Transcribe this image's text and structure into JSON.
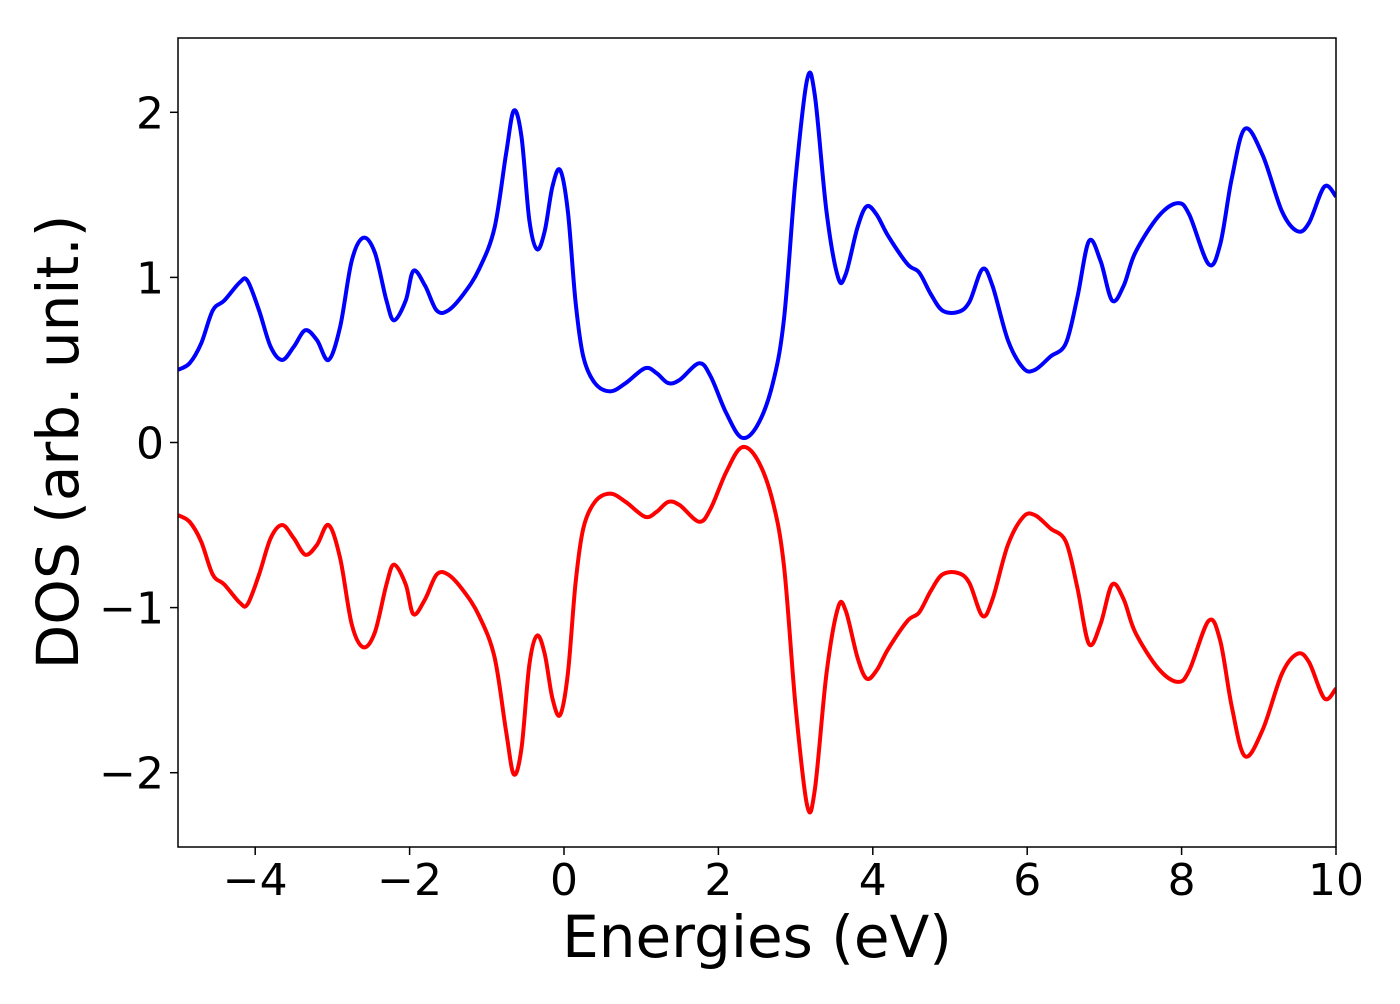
{
  "chart_data": {
    "type": "line",
    "title": "",
    "xlabel": "Energies (eV)",
    "ylabel": "DOS (arb. unit.)",
    "xlim": [
      -5,
      10
    ],
    "ylim": [
      -2.45,
      2.45
    ],
    "xticks": [
      {
        "value": -4,
        "label": "−4"
      },
      {
        "value": -2,
        "label": "−2"
      },
      {
        "value": 0,
        "label": "0"
      },
      {
        "value": 2,
        "label": "2"
      },
      {
        "value": 4,
        "label": "4"
      },
      {
        "value": 6,
        "label": "6"
      },
      {
        "value": 8,
        "label": "8"
      },
      {
        "value": 10,
        "label": "10"
      }
    ],
    "yticks": [
      {
        "value": 2,
        "label": "2"
      },
      {
        "value": 1,
        "label": "1"
      },
      {
        "value": 0,
        "label": "0"
      },
      {
        "value": -1,
        "label": "−1"
      },
      {
        "value": -2,
        "label": "−2"
      }
    ],
    "grid": false,
    "legend": "none",
    "series": [
      {
        "color": "#0000ff",
        "points": [
          [
            -5.0,
            0.44
          ],
          [
            -4.85,
            0.48
          ],
          [
            -4.7,
            0.6
          ],
          [
            -4.55,
            0.8
          ],
          [
            -4.4,
            0.86
          ],
          [
            -4.2,
            0.97
          ],
          [
            -4.1,
            0.98
          ],
          [
            -3.95,
            0.8
          ],
          [
            -3.8,
            0.58
          ],
          [
            -3.65,
            0.5
          ],
          [
            -3.5,
            0.58
          ],
          [
            -3.35,
            0.68
          ],
          [
            -3.2,
            0.62
          ],
          [
            -3.05,
            0.5
          ],
          [
            -2.9,
            0.7
          ],
          [
            -2.75,
            1.1
          ],
          [
            -2.6,
            1.24
          ],
          [
            -2.45,
            1.15
          ],
          [
            -2.3,
            0.86
          ],
          [
            -2.2,
            0.74
          ],
          [
            -2.05,
            0.86
          ],
          [
            -1.95,
            1.04
          ],
          [
            -1.8,
            0.95
          ],
          [
            -1.65,
            0.8
          ],
          [
            -1.5,
            0.8
          ],
          [
            -1.3,
            0.9
          ],
          [
            -1.1,
            1.05
          ],
          [
            -0.9,
            1.3
          ],
          [
            -0.75,
            1.75
          ],
          [
            -0.65,
            2.01
          ],
          [
            -0.55,
            1.85
          ],
          [
            -0.45,
            1.35
          ],
          [
            -0.35,
            1.17
          ],
          [
            -0.25,
            1.28
          ],
          [
            -0.15,
            1.55
          ],
          [
            -0.05,
            1.65
          ],
          [
            0.05,
            1.4
          ],
          [
            0.15,
            0.85
          ],
          [
            0.25,
            0.52
          ],
          [
            0.4,
            0.36
          ],
          [
            0.6,
            0.31
          ],
          [
            0.8,
            0.36
          ],
          [
            1.05,
            0.45
          ],
          [
            1.2,
            0.42
          ],
          [
            1.35,
            0.36
          ],
          [
            1.5,
            0.38
          ],
          [
            1.75,
            0.48
          ],
          [
            1.9,
            0.4
          ],
          [
            2.1,
            0.18
          ],
          [
            2.3,
            0.03
          ],
          [
            2.5,
            0.1
          ],
          [
            2.7,
            0.35
          ],
          [
            2.85,
            0.75
          ],
          [
            3.0,
            1.6
          ],
          [
            3.15,
            2.2
          ],
          [
            3.25,
            2.1
          ],
          [
            3.4,
            1.4
          ],
          [
            3.55,
            1.0
          ],
          [
            3.65,
            1.02
          ],
          [
            3.8,
            1.3
          ],
          [
            3.92,
            1.43
          ],
          [
            4.05,
            1.38
          ],
          [
            4.2,
            1.25
          ],
          [
            4.45,
            1.08
          ],
          [
            4.6,
            1.03
          ],
          [
            4.75,
            0.9
          ],
          [
            4.9,
            0.8
          ],
          [
            5.1,
            0.79
          ],
          [
            5.25,
            0.85
          ],
          [
            5.42,
            1.05
          ],
          [
            5.55,
            0.95
          ],
          [
            5.75,
            0.62
          ],
          [
            5.95,
            0.45
          ],
          [
            6.1,
            0.44
          ],
          [
            6.3,
            0.52
          ],
          [
            6.5,
            0.6
          ],
          [
            6.65,
            0.88
          ],
          [
            6.8,
            1.22
          ],
          [
            6.95,
            1.1
          ],
          [
            7.1,
            0.86
          ],
          [
            7.25,
            0.95
          ],
          [
            7.4,
            1.15
          ],
          [
            7.7,
            1.37
          ],
          [
            7.95,
            1.45
          ],
          [
            8.1,
            1.38
          ],
          [
            8.35,
            1.08
          ],
          [
            8.5,
            1.2
          ],
          [
            8.65,
            1.6
          ],
          [
            8.82,
            1.9
          ],
          [
            9.05,
            1.74
          ],
          [
            9.3,
            1.4
          ],
          [
            9.5,
            1.28
          ],
          [
            9.65,
            1.33
          ],
          [
            9.85,
            1.55
          ],
          [
            10.0,
            1.49
          ]
        ]
      },
      {
        "color": "#ff0000",
        "points": [
          [
            -5.0,
            -0.44
          ],
          [
            -4.85,
            -0.48
          ],
          [
            -4.7,
            -0.6
          ],
          [
            -4.55,
            -0.8
          ],
          [
            -4.4,
            -0.86
          ],
          [
            -4.2,
            -0.97
          ],
          [
            -4.1,
            -0.98
          ],
          [
            -3.95,
            -0.8
          ],
          [
            -3.8,
            -0.58
          ],
          [
            -3.65,
            -0.5
          ],
          [
            -3.5,
            -0.58
          ],
          [
            -3.35,
            -0.68
          ],
          [
            -3.2,
            -0.62
          ],
          [
            -3.05,
            -0.5
          ],
          [
            -2.9,
            -0.7
          ],
          [
            -2.75,
            -1.1
          ],
          [
            -2.6,
            -1.24
          ],
          [
            -2.45,
            -1.15
          ],
          [
            -2.3,
            -0.86
          ],
          [
            -2.2,
            -0.74
          ],
          [
            -2.05,
            -0.86
          ],
          [
            -1.95,
            -1.04
          ],
          [
            -1.8,
            -0.95
          ],
          [
            -1.65,
            -0.8
          ],
          [
            -1.5,
            -0.8
          ],
          [
            -1.3,
            -0.9
          ],
          [
            -1.1,
            -1.05
          ],
          [
            -0.9,
            -1.3
          ],
          [
            -0.75,
            -1.75
          ],
          [
            -0.65,
            -2.01
          ],
          [
            -0.55,
            -1.85
          ],
          [
            -0.45,
            -1.35
          ],
          [
            -0.35,
            -1.17
          ],
          [
            -0.25,
            -1.28
          ],
          [
            -0.15,
            -1.55
          ],
          [
            -0.05,
            -1.65
          ],
          [
            0.05,
            -1.4
          ],
          [
            0.15,
            -0.85
          ],
          [
            0.25,
            -0.52
          ],
          [
            0.4,
            -0.36
          ],
          [
            0.6,
            -0.31
          ],
          [
            0.8,
            -0.36
          ],
          [
            1.05,
            -0.45
          ],
          [
            1.2,
            -0.42
          ],
          [
            1.35,
            -0.36
          ],
          [
            1.5,
            -0.38
          ],
          [
            1.75,
            -0.48
          ],
          [
            1.9,
            -0.4
          ],
          [
            2.1,
            -0.18
          ],
          [
            2.3,
            -0.03
          ],
          [
            2.5,
            -0.1
          ],
          [
            2.7,
            -0.35
          ],
          [
            2.85,
            -0.75
          ],
          [
            3.0,
            -1.6
          ],
          [
            3.15,
            -2.2
          ],
          [
            3.25,
            -2.1
          ],
          [
            3.4,
            -1.4
          ],
          [
            3.55,
            -1.0
          ],
          [
            3.65,
            -1.02
          ],
          [
            3.8,
            -1.3
          ],
          [
            3.92,
            -1.43
          ],
          [
            4.05,
            -1.38
          ],
          [
            4.2,
            -1.25
          ],
          [
            4.45,
            -1.08
          ],
          [
            4.6,
            -1.03
          ],
          [
            4.75,
            -0.9
          ],
          [
            4.9,
            -0.8
          ],
          [
            5.1,
            -0.79
          ],
          [
            5.25,
            -0.85
          ],
          [
            5.42,
            -1.05
          ],
          [
            5.55,
            -0.95
          ],
          [
            5.75,
            -0.62
          ],
          [
            5.95,
            -0.45
          ],
          [
            6.1,
            -0.44
          ],
          [
            6.3,
            -0.52
          ],
          [
            6.5,
            -0.6
          ],
          [
            6.65,
            -0.88
          ],
          [
            6.8,
            -1.22
          ],
          [
            6.95,
            -1.1
          ],
          [
            7.1,
            -0.86
          ],
          [
            7.25,
            -0.95
          ],
          [
            7.4,
            -1.15
          ],
          [
            7.7,
            -1.37
          ],
          [
            7.95,
            -1.45
          ],
          [
            8.1,
            -1.38
          ],
          [
            8.35,
            -1.08
          ],
          [
            8.5,
            -1.2
          ],
          [
            8.65,
            -1.6
          ],
          [
            8.82,
            -1.9
          ],
          [
            9.05,
            -1.74
          ],
          [
            9.3,
            -1.4
          ],
          [
            9.5,
            -1.28
          ],
          [
            9.65,
            -1.33
          ],
          [
            9.85,
            -1.55
          ],
          [
            10.0,
            -1.49
          ]
        ]
      }
    ]
  }
}
